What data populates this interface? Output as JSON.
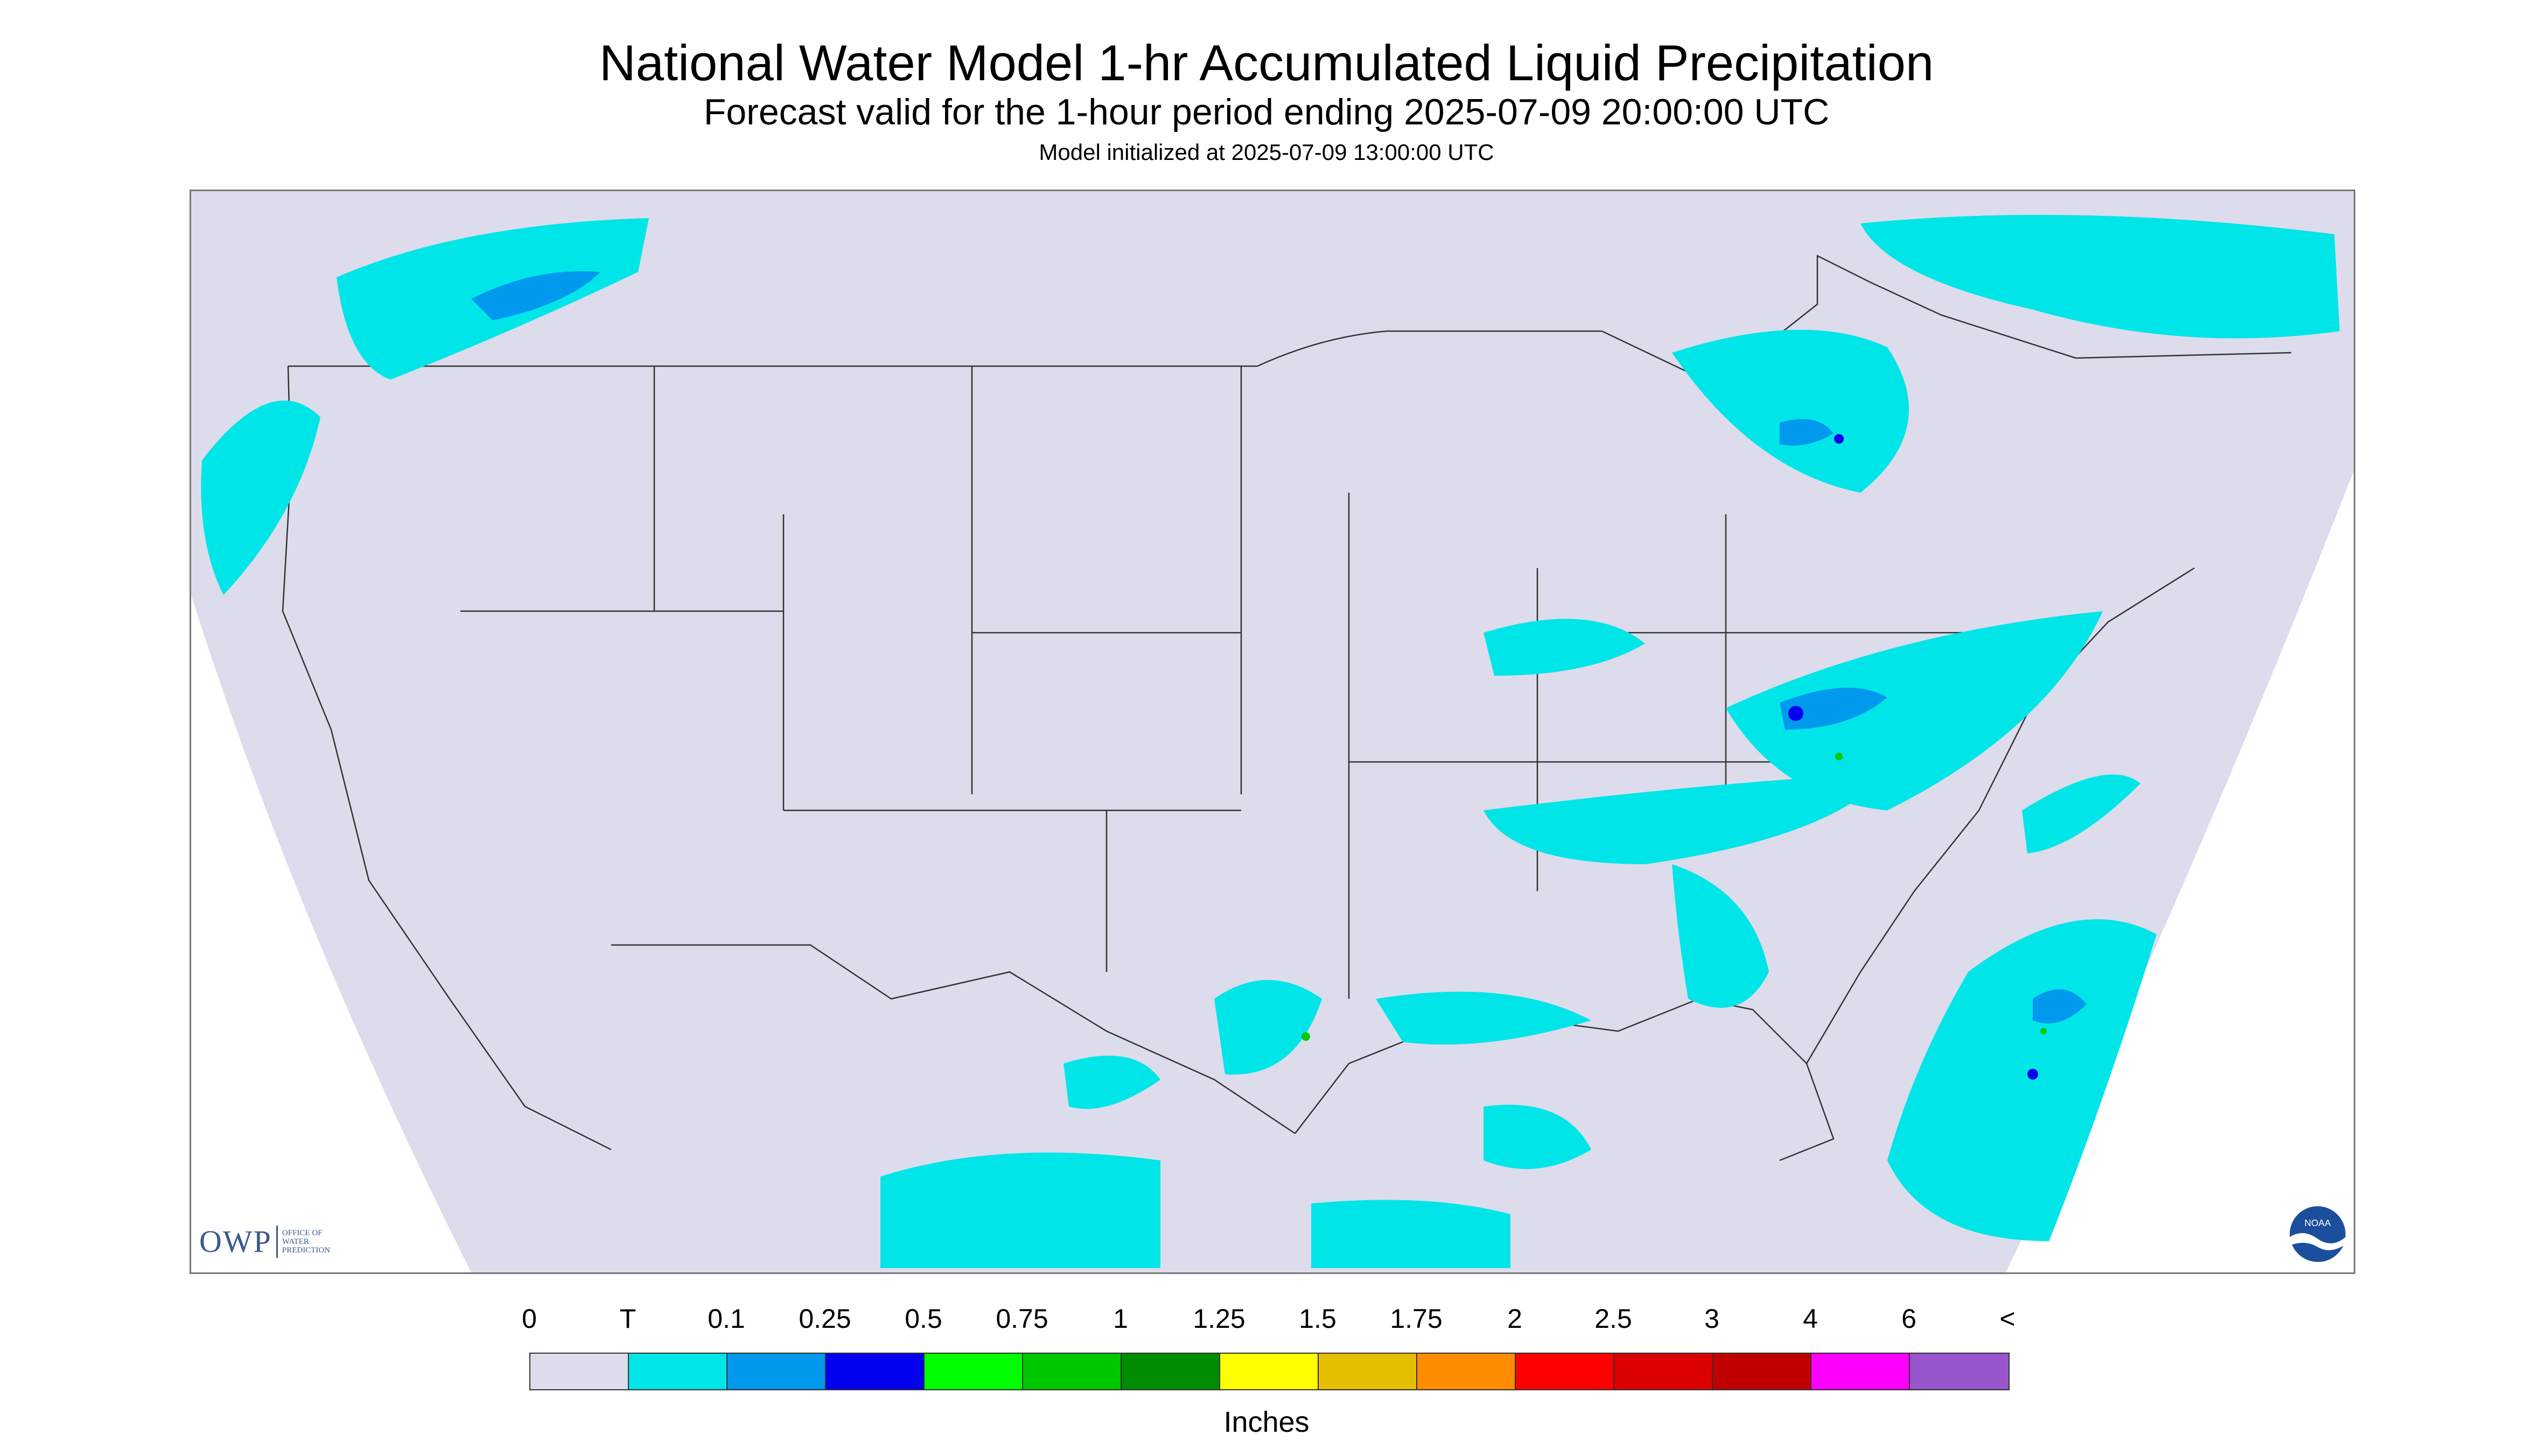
{
  "header": {
    "title": "National Water Model 1-hr Accumulated Liquid Precipitation",
    "subtitle": "Forecast valid for the 1-hour period ending 2025-07-09 20:00:00 UTC",
    "initialized": "Model initialized at 2025-07-09 13:00:00 UTC"
  },
  "map": {
    "background_color": "#dcdcec",
    "outside_color": "#ffffff",
    "precip_colors": {
      "trace": "#00e5e8",
      "light": "#0099ee",
      "moderate": "#0000ee",
      "heavy": "#00c800"
    }
  },
  "logos": {
    "owp_mark": "OWP",
    "owp_line1": "Office of",
    "owp_line2": "Water",
    "owp_line3": "Prediction",
    "noaa": "NOAA"
  },
  "legend": {
    "labels": [
      "0",
      "T",
      "0.1",
      "0.25",
      "0.5",
      "0.75",
      "1",
      "1.25",
      "1.5",
      "1.75",
      "2",
      "2.5",
      "3",
      "4",
      "6",
      "<"
    ],
    "colors": [
      "#dcdcec",
      "#00e5e8",
      "#0099ee",
      "#0000ee",
      "#00ff00",
      "#00c800",
      "#008c00",
      "#ffff00",
      "#e5be00",
      "#ff8c00",
      "#ff0000",
      "#dc0000",
      "#c00000",
      "#ff00ff",
      "#9955cc"
    ],
    "units": "Inches"
  }
}
